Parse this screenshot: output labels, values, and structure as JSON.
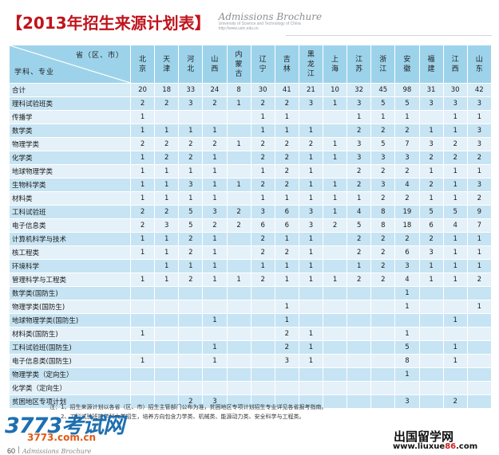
{
  "header": {
    "title": "【2013年招生来源计划表】",
    "brochure": "Admissions Brochure",
    "university": "University of Science and Technology of China",
    "site": "http://www.ustc.edu.cn"
  },
  "table": {
    "corner_top": "省（区、市）",
    "corner_bottom": "学科、专业",
    "provinces": [
      [
        "北",
        "京"
      ],
      [
        "天",
        "津"
      ],
      [
        "河",
        "北"
      ],
      [
        "山",
        "西"
      ],
      [
        "内",
        "蒙",
        "古"
      ],
      [
        "辽",
        "宁"
      ],
      [
        "吉",
        "林"
      ],
      [
        "黑",
        "龙",
        "江"
      ],
      [
        "上",
        "海"
      ],
      [
        "江",
        "苏"
      ],
      [
        "浙",
        "江"
      ],
      [
        "安",
        "徽"
      ],
      [
        "福",
        "建"
      ],
      [
        "江",
        "西"
      ],
      [
        "山",
        "东"
      ]
    ],
    "rows": [
      {
        "label": "合计",
        "values": [
          "20",
          "18",
          "33",
          "24",
          "8",
          "30",
          "41",
          "21",
          "10",
          "32",
          "45",
          "98",
          "31",
          "30",
          "42"
        ]
      },
      {
        "label": "理科试验班类",
        "values": [
          "2",
          "2",
          "3",
          "2",
          "1",
          "2",
          "2",
          "3",
          "1",
          "3",
          "5",
          "5",
          "3",
          "3",
          "3"
        ]
      },
      {
        "label": "传播学",
        "values": [
          "1",
          "",
          "",
          "",
          "",
          "1",
          "1",
          "",
          "",
          "1",
          "1",
          "1",
          "",
          "1",
          "1"
        ]
      },
      {
        "label": "数学类",
        "values": [
          "1",
          "1",
          "1",
          "1",
          "",
          "1",
          "1",
          "1",
          "",
          "2",
          "2",
          "2",
          "1",
          "1",
          "3"
        ]
      },
      {
        "label": "物理学类",
        "values": [
          "2",
          "2",
          "2",
          "2",
          "1",
          "2",
          "2",
          "2",
          "1",
          "3",
          "5",
          "7",
          "3",
          "2",
          "3"
        ]
      },
      {
        "label": "化学类",
        "values": [
          "1",
          "2",
          "2",
          "1",
          "",
          "2",
          "2",
          "1",
          "1",
          "3",
          "3",
          "3",
          "2",
          "2",
          "2"
        ]
      },
      {
        "label": "地球物理学类",
        "values": [
          "1",
          "1",
          "1",
          "1",
          "",
          "1",
          "2",
          "1",
          "",
          "2",
          "2",
          "2",
          "1",
          "1",
          "1"
        ]
      },
      {
        "label": "生物科学类",
        "values": [
          "1",
          "1",
          "3",
          "1",
          "1",
          "2",
          "2",
          "1",
          "1",
          "2",
          "3",
          "4",
          "2",
          "1",
          "3"
        ]
      },
      {
        "label": "材料类",
        "values": [
          "1",
          "1",
          "1",
          "1",
          "",
          "1",
          "1",
          "1",
          "1",
          "1",
          "2",
          "2",
          "1",
          "1",
          "2"
        ]
      },
      {
        "label": "工科试验班",
        "values": [
          "2",
          "2",
          "5",
          "3",
          "2",
          "3",
          "6",
          "3",
          "1",
          "4",
          "8",
          "19",
          "5",
          "5",
          "9"
        ]
      },
      {
        "label": "电子信息类",
        "values": [
          "2",
          "3",
          "5",
          "2",
          "2",
          "6",
          "6",
          "3",
          "2",
          "5",
          "8",
          "18",
          "6",
          "4",
          "7"
        ]
      },
      {
        "label": "计算机科学与技术",
        "values": [
          "1",
          "1",
          "2",
          "1",
          "",
          "2",
          "1",
          "1",
          "",
          "2",
          "2",
          "2",
          "2",
          "1",
          "1"
        ]
      },
      {
        "label": "核工程类",
        "values": [
          "1",
          "1",
          "2",
          "1",
          "",
          "2",
          "2",
          "1",
          "",
          "2",
          "2",
          "6",
          "3",
          "1",
          "1"
        ]
      },
      {
        "label": "环境科学",
        "values": [
          "",
          "1",
          "1",
          "1",
          "",
          "1",
          "1",
          "1",
          "",
          "1",
          "2",
          "3",
          "1",
          "1",
          "1"
        ]
      },
      {
        "label": "管理科学与工程类",
        "values": [
          "1",
          "1",
          "2",
          "1",
          "1",
          "2",
          "1",
          "1",
          "1",
          "2",
          "2",
          "4",
          "1",
          "1",
          "2"
        ]
      },
      {
        "label": "数学类(国防生)",
        "values": [
          "",
          "",
          "",
          "",
          "",
          "",
          "",
          "",
          "",
          "",
          "",
          "1",
          "",
          "",
          ""
        ]
      },
      {
        "label": "物理学类(国防生)",
        "values": [
          "",
          "",
          "",
          "",
          "",
          "",
          "1",
          "",
          "",
          "",
          "",
          "1",
          "",
          "",
          "1"
        ]
      },
      {
        "label": "地球物理学类(国防生)",
        "values": [
          "",
          "",
          "",
          "1",
          "",
          "",
          "1",
          "",
          "",
          "",
          "",
          "",
          "",
          "1",
          ""
        ]
      },
      {
        "label": "材料类(国防生)",
        "values": [
          "1",
          "",
          "",
          "",
          "",
          "",
          "2",
          "1",
          "",
          "",
          "",
          "1",
          "",
          "",
          ""
        ]
      },
      {
        "label": "工科试验班(国防生)",
        "values": [
          "",
          "",
          "",
          "1",
          "",
          "",
          "2",
          "1",
          "",
          "",
          "",
          "5",
          "",
          "1",
          ""
        ]
      },
      {
        "label": "电子信息类(国防生)",
        "values": [
          "1",
          "",
          "",
          "1",
          "",
          "",
          "3",
          "1",
          "",
          "",
          "",
          "8",
          "",
          "1",
          ""
        ]
      },
      {
        "label": "物理学类（定向生）",
        "values": [
          "",
          "",
          "",
          "",
          "",
          "",
          "",
          "",
          "",
          "",
          "",
          "1",
          "",
          "",
          ""
        ]
      },
      {
        "label": "化学类（定向生）",
        "values": [
          "",
          "",
          "",
          "",
          "",
          "",
          "",
          "",
          "",
          "",
          "",
          "",
          "",
          "",
          ""
        ]
      },
      {
        "label": "贫困地区专项计划",
        "values": [
          "",
          "",
          "2",
          "3",
          "",
          "",
          "",
          "",
          "",
          "",
          "",
          "3",
          "",
          "2",
          ""
        ]
      }
    ]
  },
  "notes": {
    "line1": "注：1、招生来源计划以各省（区、市）招生主管部门公布为准，贫困地区专项计划招生专业详见各省报考指南。",
    "line2": "2、工科试验班按学科大类招生，培养方向包含力学类、机械类、能源动力类、安全科学与工程类。"
  },
  "watermarks": {
    "left_logo": "3773考试网",
    "left_url": "3773.com.cn",
    "right_logo": "出国留学网",
    "right_url_pre": "www.liuxue",
    "right_url_red": "86",
    "right_url_post": ".com"
  },
  "footer": {
    "page_number": "60",
    "brochure": "Admissions Brochure"
  },
  "colors": {
    "title_red": "#c0141c",
    "header_blue": "#9dd3ea",
    "row_light": "#e4f1f9",
    "row_dark": "#c6e4f3"
  }
}
